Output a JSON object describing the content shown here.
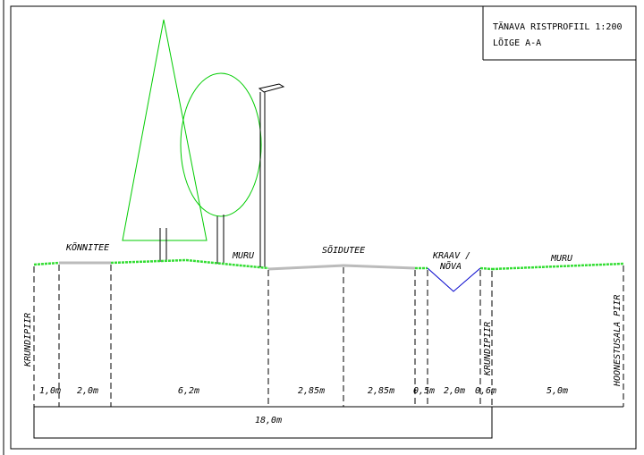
{
  "title_block": {
    "line1": "TÄNAVA RISTPROFIIL  1:200",
    "line2": "LÕIGE A-A"
  },
  "labels": {
    "konnitee": "KÕNNITEE",
    "muru_left": "MURU",
    "soidutee": "SÕIDUTEE",
    "kraav_line1": "KRAAV /",
    "kraav_line2": "NÕVA",
    "muru_right": "MURU",
    "krundipiir_left": "KRUNDIPIIR",
    "krundipiir_mid": "KRUNDIPIIR",
    "hoonestusala": "HOONESTUSALA PIIR"
  },
  "dimensions": {
    "segments": [
      "1,0m",
      "2,0m",
      "6,2m",
      "2,85m",
      "2,85m",
      "0,5m",
      "2,0m",
      "0,6m",
      "5,0m"
    ],
    "total": "18,0m"
  },
  "colors": {
    "grass": "#33dd33",
    "pavement": "#bbbbbb",
    "tree": "#00cc00",
    "ditch": "#0000cc",
    "line": "#000000"
  }
}
